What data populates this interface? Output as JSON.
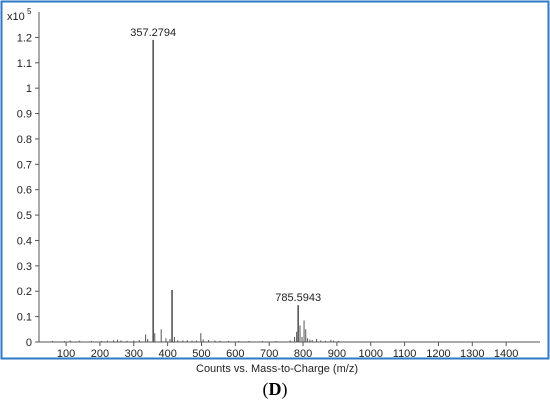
{
  "chart_data": {
    "type": "bar",
    "xlabel": "Counts vs. Mass-to-Charge (m/z)",
    "ylabel": "",
    "y_multiplier": "x10",
    "y_exponent": "5",
    "xlim": [
      20,
      1500
    ],
    "ylim": [
      0,
      1.3
    ],
    "x_ticks": [
      100,
      200,
      300,
      400,
      500,
      600,
      700,
      800,
      900,
      1000,
      1100,
      1200,
      1300,
      1400
    ],
    "y_ticks": [
      {
        "value": 0,
        "label": "0"
      },
      {
        "value": 0.1,
        "label": "0.1"
      },
      {
        "value": 0.2,
        "label": "0.2"
      },
      {
        "value": 0.3,
        "label": "0.3"
      },
      {
        "value": 0.4,
        "label": "0.4"
      },
      {
        "value": 0.5,
        "label": "0.5"
      },
      {
        "value": 0.6,
        "label": "0.6"
      },
      {
        "value": 0.7,
        "label": "0.7"
      },
      {
        "value": 0.8,
        "label": "0.8"
      },
      {
        "value": 0.9,
        "label": "0.9"
      },
      {
        "value": 1.0,
        "label": "1"
      },
      {
        "value": 1.1,
        "label": "1.1"
      },
      {
        "value": 1.2,
        "label": "1.2"
      }
    ],
    "grid": false,
    "peaks": [
      {
        "x": 60,
        "y": 0.004
      },
      {
        "x": 95,
        "y": 0.003
      },
      {
        "x": 112,
        "y": 0.006
      },
      {
        "x": 140,
        "y": 0.005
      },
      {
        "x": 175,
        "y": 0.004
      },
      {
        "x": 205,
        "y": 0.004
      },
      {
        "x": 222,
        "y": 0.005
      },
      {
        "x": 240,
        "y": 0.007
      },
      {
        "x": 252,
        "y": 0.009
      },
      {
        "x": 262,
        "y": 0.006
      },
      {
        "x": 280,
        "y": 0.005
      },
      {
        "x": 300,
        "y": 0.006
      },
      {
        "x": 316,
        "y": 0.008
      },
      {
        "x": 335,
        "y": 0.03
      },
      {
        "x": 341,
        "y": 0.012
      },
      {
        "x": 357.2794,
        "y": 1.19,
        "label": "357.2794"
      },
      {
        "x": 362,
        "y": 0.035
      },
      {
        "x": 381,
        "y": 0.05
      },
      {
        "x": 395,
        "y": 0.015
      },
      {
        "x": 407,
        "y": 0.012
      },
      {
        "x": 413,
        "y": 0.205
      },
      {
        "x": 420,
        "y": 0.02
      },
      {
        "x": 430,
        "y": 0.007
      },
      {
        "x": 445,
        "y": 0.006
      },
      {
        "x": 458,
        "y": 0.007
      },
      {
        "x": 472,
        "y": 0.005
      },
      {
        "x": 485,
        "y": 0.006
      },
      {
        "x": 498,
        "y": 0.035
      },
      {
        "x": 505,
        "y": 0.01
      },
      {
        "x": 521,
        "y": 0.008
      },
      {
        "x": 540,
        "y": 0.006
      },
      {
        "x": 555,
        "y": 0.005
      },
      {
        "x": 580,
        "y": 0.004
      },
      {
        "x": 610,
        "y": 0.004
      },
      {
        "x": 640,
        "y": 0.003
      },
      {
        "x": 680,
        "y": 0.004
      },
      {
        "x": 720,
        "y": 0.004
      },
      {
        "x": 762,
        "y": 0.006
      },
      {
        "x": 775,
        "y": 0.02
      },
      {
        "x": 781,
        "y": 0.04
      },
      {
        "x": 785.5943,
        "y": 0.145,
        "label": "785.5943"
      },
      {
        "x": 791,
        "y": 0.065
      },
      {
        "x": 797,
        "y": 0.02
      },
      {
        "x": 803,
        "y": 0.085
      },
      {
        "x": 808,
        "y": 0.05
      },
      {
        "x": 813,
        "y": 0.015
      },
      {
        "x": 820,
        "y": 0.01
      },
      {
        "x": 827,
        "y": 0.008
      },
      {
        "x": 840,
        "y": 0.012
      },
      {
        "x": 852,
        "y": 0.006
      },
      {
        "x": 866,
        "y": 0.005
      },
      {
        "x": 882,
        "y": 0.008
      },
      {
        "x": 890,
        "y": 0.006
      },
      {
        "x": 905,
        "y": 0.004
      }
    ]
  },
  "figure": {
    "panel_label_open": "(",
    "panel_label_letter": "D",
    "panel_label_close": ")"
  }
}
